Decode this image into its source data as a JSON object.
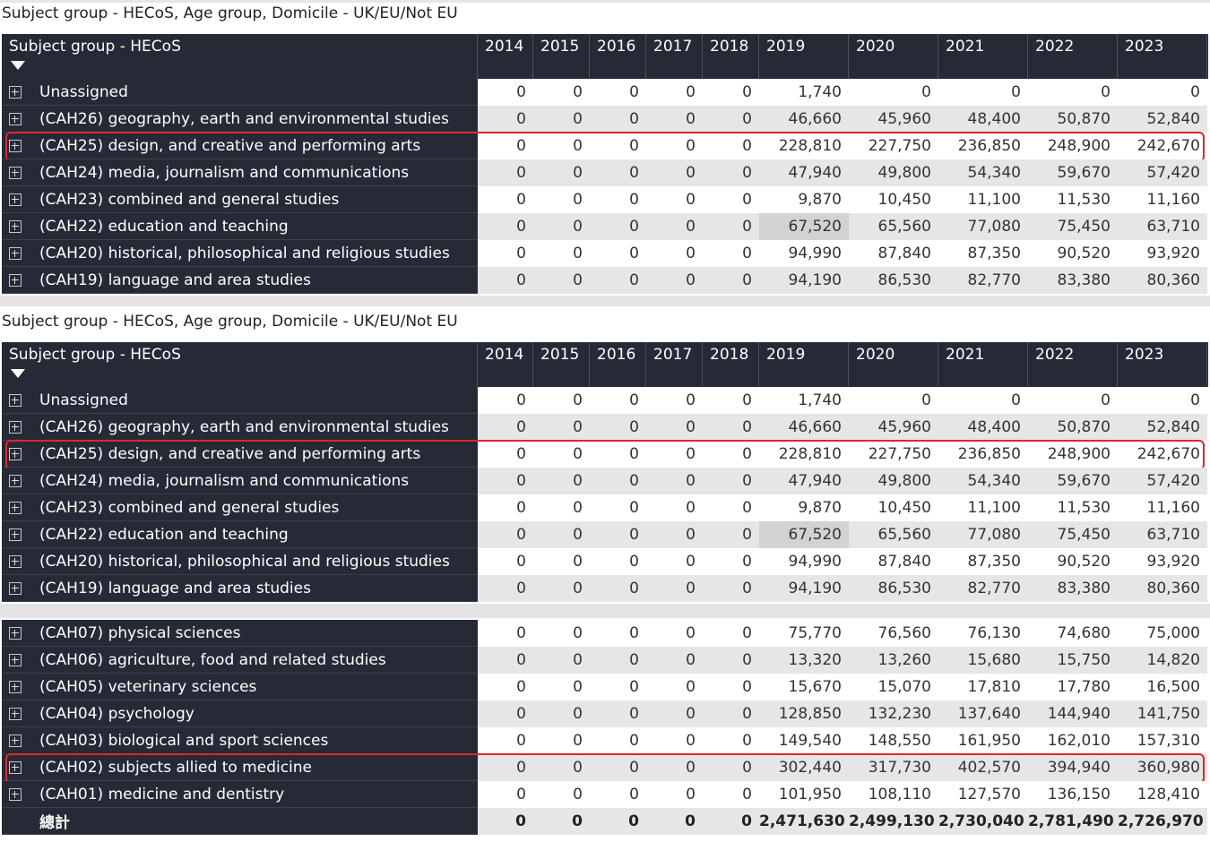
{
  "title": "Subject group - HECoS, Age group, Domicile - UK/EU/Not EU",
  "header_label": "Subject group - HECoS",
  "years": [
    "2014",
    "2015",
    "2016",
    "2017",
    "2018",
    "2019",
    "2020",
    "2021",
    "2022",
    "2023"
  ],
  "colors": {
    "header_bg": "#252a36",
    "highlight": "#e0262a"
  },
  "top_rows": [
    {
      "label": "Unassigned",
      "values": [
        "0",
        "0",
        "0",
        "0",
        "0",
        "1,740",
        "0",
        "0",
        "0",
        "0"
      ]
    },
    {
      "label": "(CAH26) geography, earth and environmental studies",
      "values": [
        "0",
        "0",
        "0",
        "0",
        "0",
        "46,660",
        "45,960",
        "48,400",
        "50,870",
        "52,840"
      ]
    },
    {
      "label": "(CAH25) design, and creative and performing arts",
      "values": [
        "0",
        "0",
        "0",
        "0",
        "0",
        "228,810",
        "227,750",
        "236,850",
        "248,900",
        "242,670"
      ],
      "highlighted": true
    },
    {
      "label": "(CAH24) media, journalism and communications",
      "values": [
        "0",
        "0",
        "0",
        "0",
        "0",
        "47,940",
        "49,800",
        "54,340",
        "59,670",
        "57,420"
      ]
    },
    {
      "label": "(CAH23) combined and general studies",
      "values": [
        "0",
        "0",
        "0",
        "0",
        "0",
        "9,870",
        "10,450",
        "11,100",
        "11,530",
        "11,160"
      ]
    },
    {
      "label": "(CAH22) education and teaching",
      "values": [
        "0",
        "0",
        "0",
        "0",
        "0",
        "67,520",
        "65,560",
        "77,080",
        "75,450",
        "63,710"
      ],
      "shaded_col": 5
    },
    {
      "label": "(CAH20) historical, philosophical and religious studies",
      "values": [
        "0",
        "0",
        "0",
        "0",
        "0",
        "94,990",
        "87,840",
        "87,350",
        "90,520",
        "93,920"
      ]
    },
    {
      "label": "(CAH19) language and area studies",
      "values": [
        "0",
        "0",
        "0",
        "0",
        "0",
        "94,190",
        "86,530",
        "82,770",
        "83,380",
        "80,360"
      ]
    }
  ],
  "bottom_rows": [
    {
      "label": "(CAH07) physical sciences",
      "values": [
        "0",
        "0",
        "0",
        "0",
        "0",
        "75,770",
        "76,560",
        "76,130",
        "74,680",
        "75,000"
      ]
    },
    {
      "label": "(CAH06) agriculture, food and related studies",
      "values": [
        "0",
        "0",
        "0",
        "0",
        "0",
        "13,320",
        "13,260",
        "15,680",
        "15,750",
        "14,820"
      ]
    },
    {
      "label": "(CAH05) veterinary sciences",
      "values": [
        "0",
        "0",
        "0",
        "0",
        "0",
        "15,670",
        "15,070",
        "17,810",
        "17,780",
        "16,500"
      ]
    },
    {
      "label": "(CAH04) psychology",
      "values": [
        "0",
        "0",
        "0",
        "0",
        "0",
        "128,850",
        "132,230",
        "137,640",
        "144,940",
        "141,750"
      ]
    },
    {
      "label": "(CAH03) biological and sport sciences",
      "values": [
        "0",
        "0",
        "0",
        "0",
        "0",
        "149,540",
        "148,550",
        "161,950",
        "162,010",
        "157,310"
      ]
    },
    {
      "label": "(CAH02) subjects allied to medicine",
      "values": [
        "0",
        "0",
        "0",
        "0",
        "0",
        "302,440",
        "317,730",
        "402,570",
        "394,940",
        "360,980"
      ],
      "highlighted": true
    },
    {
      "label": "(CAH01) medicine and dentistry",
      "values": [
        "0",
        "0",
        "0",
        "0",
        "0",
        "101,950",
        "108,110",
        "127,570",
        "136,150",
        "128,410"
      ]
    },
    {
      "label": "總計",
      "values": [
        "0",
        "0",
        "0",
        "0",
        "0",
        "2,471,630",
        "2,499,130",
        "2,730,040",
        "2,781,490",
        "2,726,970"
      ],
      "total": true
    }
  ]
}
